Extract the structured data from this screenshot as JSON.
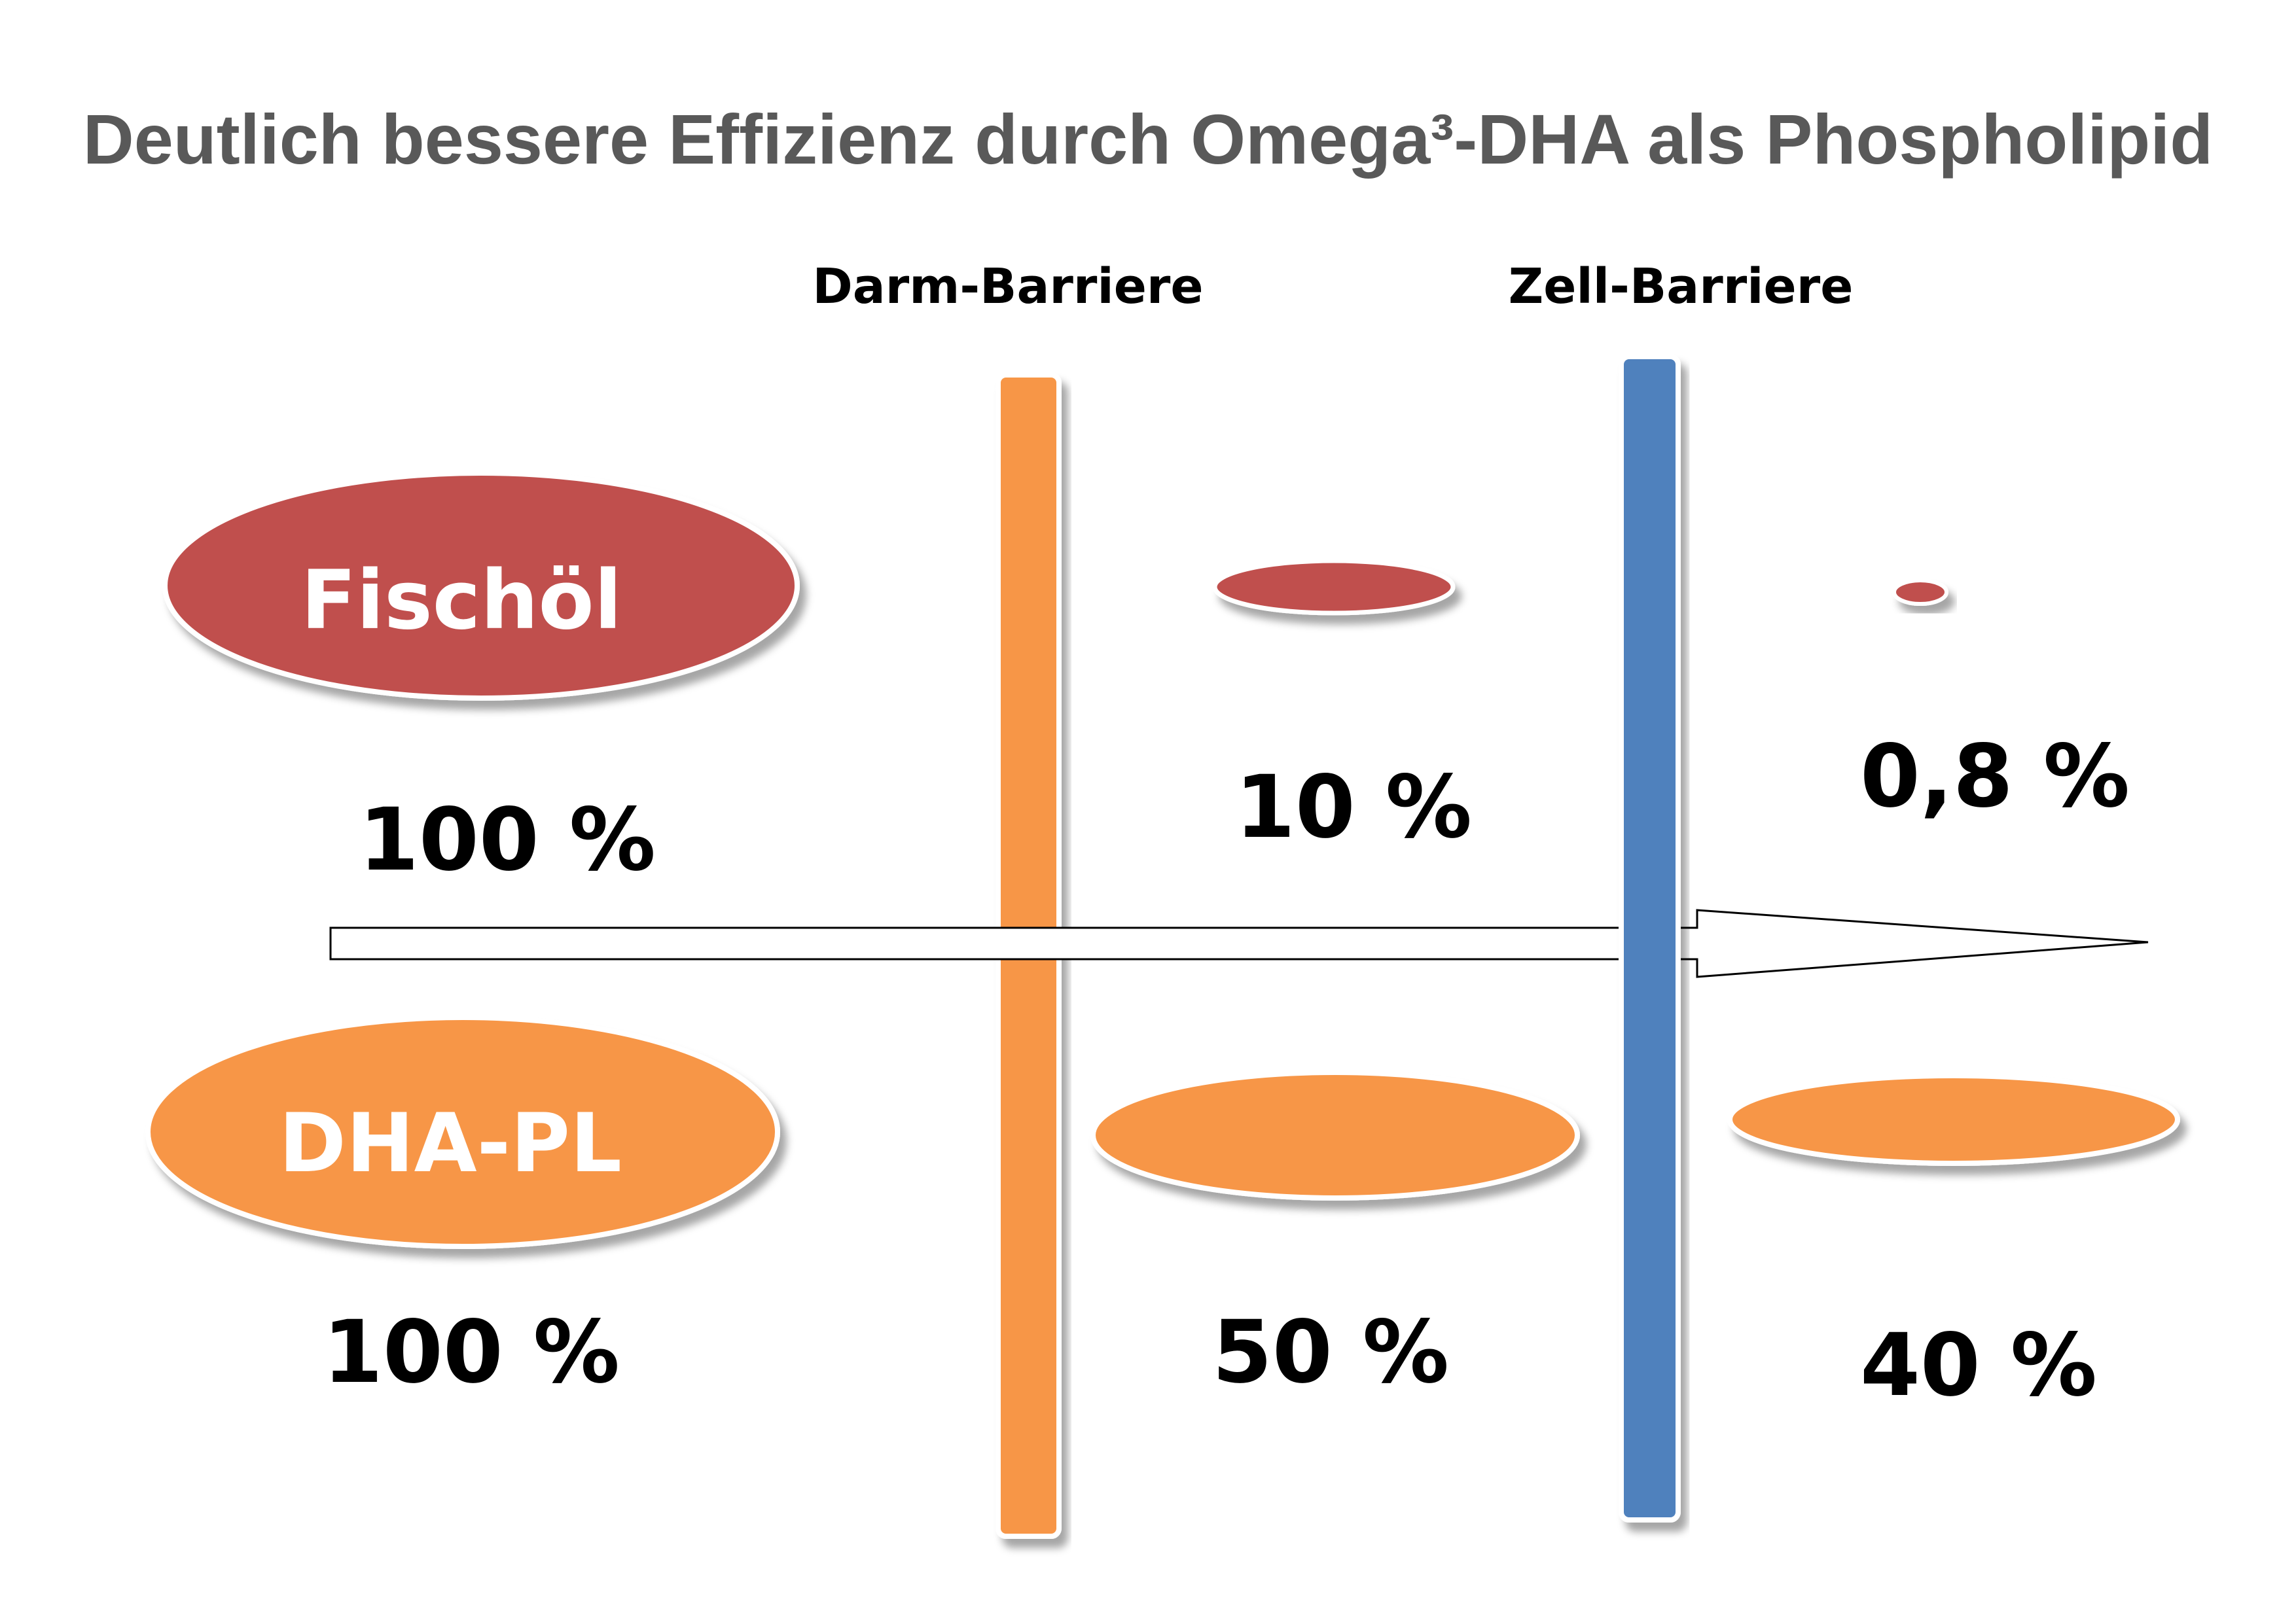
{
  "title": "Deutlich bessere Effizienz durch Omega³-DHA als Phospholipid",
  "barriers": [
    {
      "label": "Darm-Barriere",
      "color": "#F79646"
    },
    {
      "label": "Zell-Barriere",
      "color": "#4F81BD"
    }
  ],
  "rows": [
    {
      "label": "Fischöl",
      "color": "#C0504D",
      "percents": [
        "100 %",
        "10 %",
        "0,8 %"
      ]
    },
    {
      "label": "DHA-PL",
      "color": "#F79646",
      "percents": [
        "100 %",
        "50 %",
        "40 %"
      ]
    }
  ]
}
